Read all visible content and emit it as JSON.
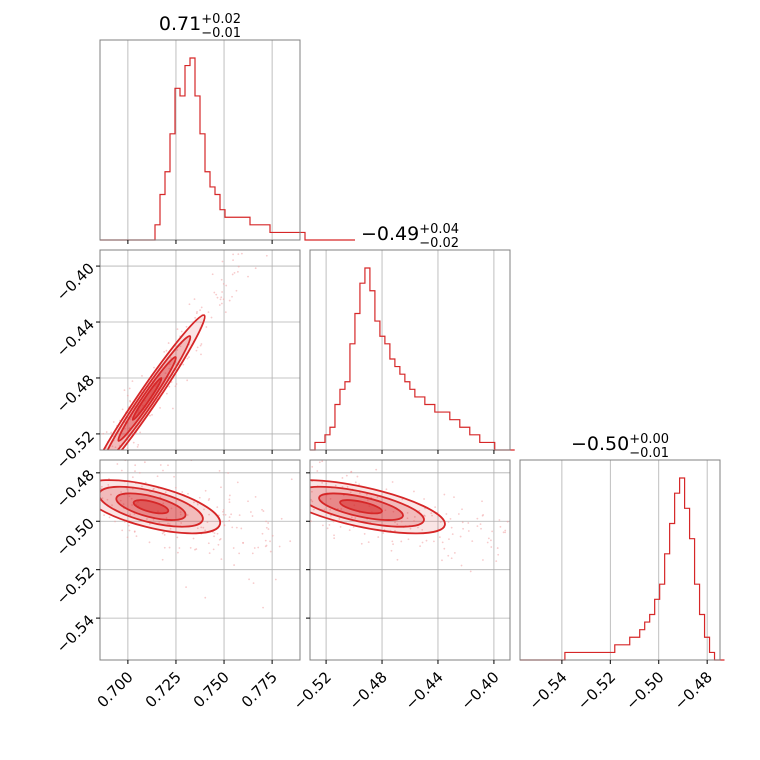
{
  "colors": {
    "series": "#d62728",
    "frame": "#808080",
    "grid": "#b0b0b0"
  },
  "chart_data": {
    "type": "corner",
    "parameters": [
      {
        "id": "p0",
        "median_label": "0.71",
        "plus_label": "+0.02",
        "minus_label": "−0.01",
        "range": [
          0.6855,
          0.7895
        ],
        "ticks": [
          0.7,
          0.725,
          0.75,
          0.775
        ],
        "tick_labels": [
          "0.700",
          "0.725",
          "0.750",
          "0.775"
        ]
      },
      {
        "id": "p1",
        "median_label": "−0.49",
        "plus_label": "+0.04",
        "minus_label": "−0.02",
        "range": [
          -0.5315,
          -0.3885
        ],
        "ticks": [
          -0.52,
          -0.48,
          -0.44,
          -0.4
        ],
        "tick_labels": [
          "−0.52",
          "−0.48",
          "−0.44",
          "−0.40"
        ]
      },
      {
        "id": "p2",
        "median_label": "−0.50",
        "plus_label": "+0.00",
        "minus_label": "−0.01",
        "range": [
          -0.5573,
          -0.4747
        ],
        "ticks": [
          -0.54,
          -0.52,
          -0.5,
          -0.48
        ],
        "tick_labels": [
          "−0.54",
          "−0.52",
          "−0.50",
          "−0.48"
        ]
      }
    ],
    "histograms": [
      {
        "param": 0,
        "bin_start": 0.6855,
        "bin_width": 0.0026,
        "counts": [
          0,
          0,
          0,
          0,
          0,
          0,
          0,
          0,
          0,
          0,
          0,
          2,
          6,
          9,
          14,
          20,
          19,
          23,
          24,
          19,
          14,
          9,
          7,
          6,
          4,
          3,
          3,
          3,
          3,
          3,
          2,
          2,
          2,
          2,
          1,
          1,
          1,
          1,
          1,
          1,
          1,
          0,
          0,
          0,
          0,
          0,
          0,
          0,
          0,
          0,
          0
        ],
        "max_count": 24
      },
      {
        "param": 1,
        "bin_start": -0.5315,
        "bin_width": 0.00357,
        "counts": [
          0,
          1,
          1,
          2,
          3,
          6,
          8,
          9,
          14,
          18,
          22,
          24,
          21,
          17,
          15,
          14,
          12,
          11,
          10,
          9,
          8,
          7,
          7,
          6,
          6,
          5,
          5,
          5,
          4,
          4,
          3,
          3,
          2,
          2,
          1,
          1,
          1,
          0,
          0,
          0,
          0
        ],
        "max_count": 24
      },
      {
        "param": 2,
        "bin_start": -0.5573,
        "bin_width": 0.00206,
        "counts": [
          0,
          0,
          0,
          0,
          0,
          0,
          0,
          0,
          0,
          1,
          1,
          1,
          1,
          1,
          1,
          1,
          1,
          1,
          1,
          2,
          2,
          2,
          3,
          3,
          4,
          5,
          6,
          8,
          10,
          14,
          18,
          22,
          24,
          20,
          16,
          10,
          6,
          3,
          1,
          0,
          0
        ],
        "max_count": 24
      }
    ],
    "pairs": [
      {
        "x_param": 0,
        "y_param": 1,
        "center": [
          0.71,
          -0.495
        ],
        "spread": [
          0.015,
          0.03
        ],
        "correlation": 0.98,
        "levels": [
          0.5,
          1.0,
          1.5,
          2.0
        ]
      },
      {
        "x_param": 0,
        "y_param": 2,
        "center": [
          0.712,
          -0.494
        ],
        "spread": [
          0.018,
          0.0055
        ],
        "correlation": -0.6,
        "levels": [
          0.5,
          1.0,
          1.5,
          2.0
        ]
      },
      {
        "x_param": 1,
        "y_param": 2,
        "center": [
          -0.495,
          -0.494
        ],
        "spread": [
          0.03,
          0.0055
        ],
        "correlation": -0.65,
        "levels": [
          0.5,
          1.0,
          1.5,
          2.0
        ]
      }
    ],
    "grid": true
  }
}
